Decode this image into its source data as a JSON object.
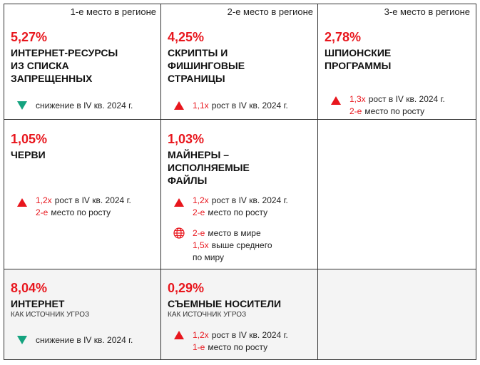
{
  "header": [
    "1-е место в регионе",
    "2-е место в регионе",
    "3-е место в регионе"
  ],
  "rows": [
    [
      {
        "value": "5,27%",
        "title": [
          "ИНТЕРНЕТ-РЕСУРСЫ",
          "ИЗ СПИСКА",
          "ЗАПРЕЩЕННЫХ"
        ],
        "notes": [
          {
            "text": "снижение в IV кв. 2024 г."
          }
        ]
      },
      {
        "value": "4,25%",
        "title": [
          "СКРИПТЫ И",
          "ФИШИНГОВЫЕ",
          "СТРАНИЦЫ"
        ],
        "notes": [
          {
            "hl": "1,1x",
            "text": "рост в IV кв. 2024 г."
          }
        ]
      },
      {
        "value": "2,78%",
        "title": [
          "ШПИОНСКИЕ",
          "ПРОГРАММЫ"
        ],
        "notes": [
          {
            "hl": "1,3x",
            "text": "рост в IV кв. 2024 г."
          },
          {
            "hl": "2-е",
            "text": "место по росту"
          }
        ]
      }
    ],
    [
      {
        "value": "1,05%",
        "title": [
          "ЧЕРВИ"
        ],
        "notes": [
          {
            "hl": "1,2x",
            "text": "рост в IV кв. 2024 г."
          },
          {
            "hl": "2-е",
            "text": "место по росту"
          }
        ]
      },
      {
        "value": "1,03%",
        "title": [
          "МАЙНЕРЫ –",
          "ИСПОЛНЯЕМЫЕ",
          "ФАЙЛЫ"
        ],
        "notes": [
          {
            "hl": "1,2x",
            "text": "рост в IV кв. 2024 г."
          },
          {
            "hl": "2-е",
            "text": "место по росту"
          },
          {
            "hl": "2-е",
            "text": "место в мире"
          },
          {
            "hl": "1,5x",
            "text": "выше среднего"
          },
          {
            "text": "по миру"
          }
        ]
      }
    ],
    [
      {
        "value": "8,04%",
        "title": [
          "ИНТЕРНЕТ"
        ],
        "subtitle": "КАК ИСТОЧНИК УГРОЗ",
        "notes": [
          {
            "text": "снижение в IV кв. 2024 г."
          }
        ]
      },
      {
        "value": "0,29%",
        "title": [
          "СЪЕМНЫЕ НОСИТЕЛИ"
        ],
        "subtitle": "КАК ИСТОЧНИК УГРОЗ",
        "notes": [
          {
            "hl": "1,2x",
            "text": "рост в IV кв. 2024 г."
          },
          {
            "hl": "1-е",
            "text": "место по росту"
          }
        ]
      }
    ]
  ]
}
